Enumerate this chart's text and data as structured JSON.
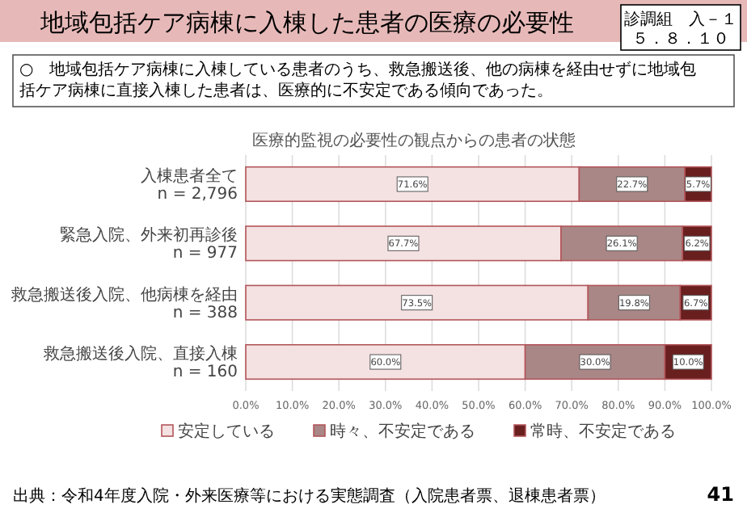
{
  "chart_data": {
    "type": "bar",
    "orientation": "horizontal",
    "stacked": true,
    "title": "地域包括ケア病棟に入棟した患者の医療の必要性",
    "subtitle": "医療的監視の必要性の観点からの患者の状態",
    "categories": [
      "入棟患者全て\nn = 2,796",
      "緊急入院、外来初再診後\nn = 977",
      "救急搬送後入院、他病棟を経由\nn = 388",
      "救急搬送後入院、直接入棟\nn = 160"
    ],
    "series": [
      {
        "name": "安定している",
        "color": "#f4e1e1",
        "values": [
          71.6,
          67.7,
          73.5,
          60.0
        ],
        "value_labels": [
          "71.6%",
          "67.7%",
          "73.5%",
          "60.0%"
        ]
      },
      {
        "name": "時々、不安定である",
        "color": "#a98786",
        "values": [
          22.7,
          26.1,
          19.8,
          30.0
        ],
        "value_labels": [
          "22.7%",
          "26.1%",
          "19.8%",
          "30.0%"
        ]
      },
      {
        "name": "常時、不安定である",
        "color": "#6a1f1f",
        "values": [
          5.7,
          6.2,
          6.7,
          10.0
        ],
        "value_labels": [
          "5.7%",
          "6.2%",
          "6.7%",
          "10.0%"
        ]
      }
    ],
    "xlim": [
      0,
      100
    ],
    "xticks": [
      {
        "value": 0,
        "label": "0.0%"
      },
      {
        "value": 10,
        "label": "10.0%"
      },
      {
        "value": 20,
        "label": "20.0%"
      },
      {
        "value": 30,
        "label": "30.0%"
      },
      {
        "value": 40,
        "label": "40.0%"
      },
      {
        "value": 50,
        "label": "50.0%"
      },
      {
        "value": 60,
        "label": "60.0%"
      },
      {
        "value": 70,
        "label": "70.0%"
      },
      {
        "value": 80,
        "label": "80.0%"
      },
      {
        "value": 90,
        "label": "90.0%"
      },
      {
        "value": 100,
        "label": "100.0%"
      }
    ],
    "grid": "x",
    "legend": "bottom",
    "annotations": [
      "○　地域包括ケア病棟に入棟している患者のうち、救急搬送後、他の病棟を経由せずに地域包括ケア病棟に直接入棟した患者は、医療的に不安定である傾向であった。",
      "診調組　入－１",
      "５．８．１０",
      "出典：令和4年度入院・外来医療等における実態調査（入院患者票、退棟患者票）",
      "41"
    ]
  }
}
